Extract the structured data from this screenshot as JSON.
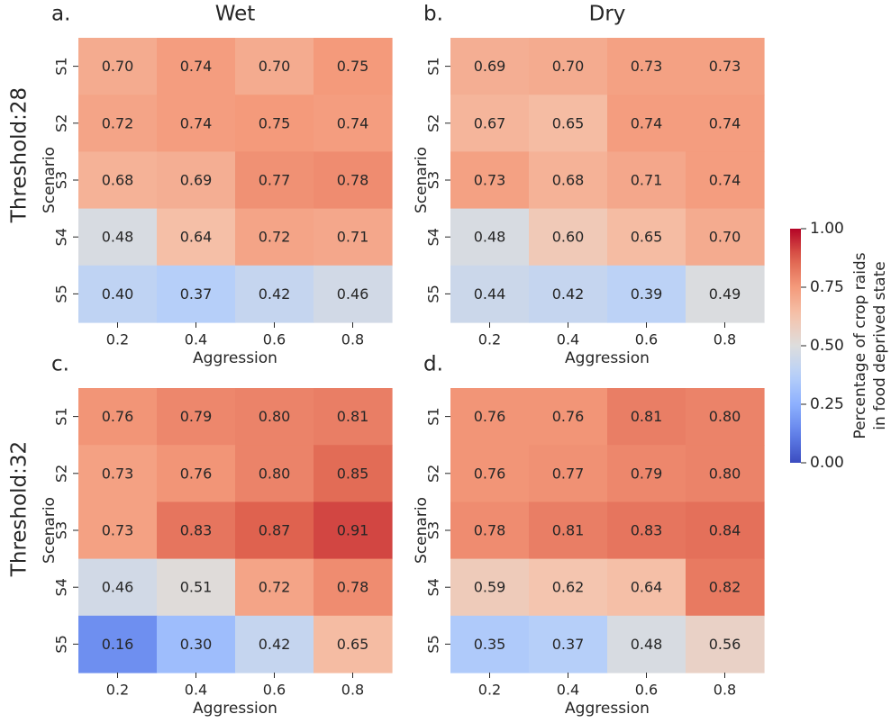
{
  "figure": {
    "row_labels": [
      "Threshold:28",
      "Threshold:32"
    ],
    "col_titles": [
      "Wet",
      "Dry"
    ]
  },
  "colorbar": {
    "label_line1": "Percentage of crop raids",
    "label_line2": "in food deprived state",
    "ticks": [
      "0.00",
      "0.25",
      "0.50",
      "0.75",
      "1.00"
    ],
    "tick_values": [
      0.0,
      0.25,
      0.5,
      0.75,
      1.0
    ],
    "vmin": 0.0,
    "vmax": 1.0,
    "colormap": "coolwarm"
  },
  "chart_data": [
    {
      "type": "heatmap",
      "panel_label": "a.",
      "title": "Wet",
      "xlabel": "Aggression",
      "ylabel": "Scenario",
      "x_categories": [
        "0.2",
        "0.4",
        "0.6",
        "0.8"
      ],
      "y_categories": [
        "S1",
        "S2",
        "S3",
        "S4",
        "S5"
      ],
      "values": [
        [
          0.7,
          0.74,
          0.7,
          0.75
        ],
        [
          0.72,
          0.74,
          0.75,
          0.74
        ],
        [
          0.68,
          0.69,
          0.77,
          0.78
        ],
        [
          0.48,
          0.64,
          0.72,
          0.71
        ],
        [
          0.4,
          0.37,
          0.42,
          0.46
        ]
      ]
    },
    {
      "type": "heatmap",
      "panel_label": "b.",
      "title": "Dry",
      "xlabel": "Aggression",
      "ylabel": "Scenario",
      "x_categories": [
        "0.2",
        "0.4",
        "0.6",
        "0.8"
      ],
      "y_categories": [
        "S1",
        "S2",
        "S3",
        "S4",
        "S5"
      ],
      "values": [
        [
          0.69,
          0.7,
          0.73,
          0.73
        ],
        [
          0.67,
          0.65,
          0.74,
          0.74
        ],
        [
          0.73,
          0.68,
          0.71,
          0.74
        ],
        [
          0.48,
          0.6,
          0.65,
          0.7
        ],
        [
          0.44,
          0.42,
          0.39,
          0.49
        ]
      ]
    },
    {
      "type": "heatmap",
      "panel_label": "c.",
      "title": "",
      "xlabel": "Aggression",
      "ylabel": "Scenario",
      "x_categories": [
        "0.2",
        "0.4",
        "0.6",
        "0.8"
      ],
      "y_categories": [
        "S1",
        "S2",
        "S3",
        "S4",
        "S5"
      ],
      "values": [
        [
          0.76,
          0.79,
          0.8,
          0.81
        ],
        [
          0.73,
          0.76,
          0.8,
          0.85
        ],
        [
          0.73,
          0.83,
          0.87,
          0.91
        ],
        [
          0.46,
          0.51,
          0.72,
          0.78
        ],
        [
          0.16,
          0.3,
          0.42,
          0.65
        ]
      ]
    },
    {
      "type": "heatmap",
      "panel_label": "d.",
      "title": "",
      "xlabel": "Aggression",
      "ylabel": "Scenario",
      "x_categories": [
        "0.2",
        "0.4",
        "0.6",
        "0.8"
      ],
      "y_categories": [
        "S1",
        "S2",
        "S3",
        "S4",
        "S5"
      ],
      "values": [
        [
          0.76,
          0.76,
          0.81,
          0.8
        ],
        [
          0.76,
          0.77,
          0.79,
          0.8
        ],
        [
          0.78,
          0.81,
          0.83,
          0.84
        ],
        [
          0.59,
          0.62,
          0.64,
          0.82
        ],
        [
          0.35,
          0.37,
          0.48,
          0.56
        ]
      ]
    }
  ]
}
